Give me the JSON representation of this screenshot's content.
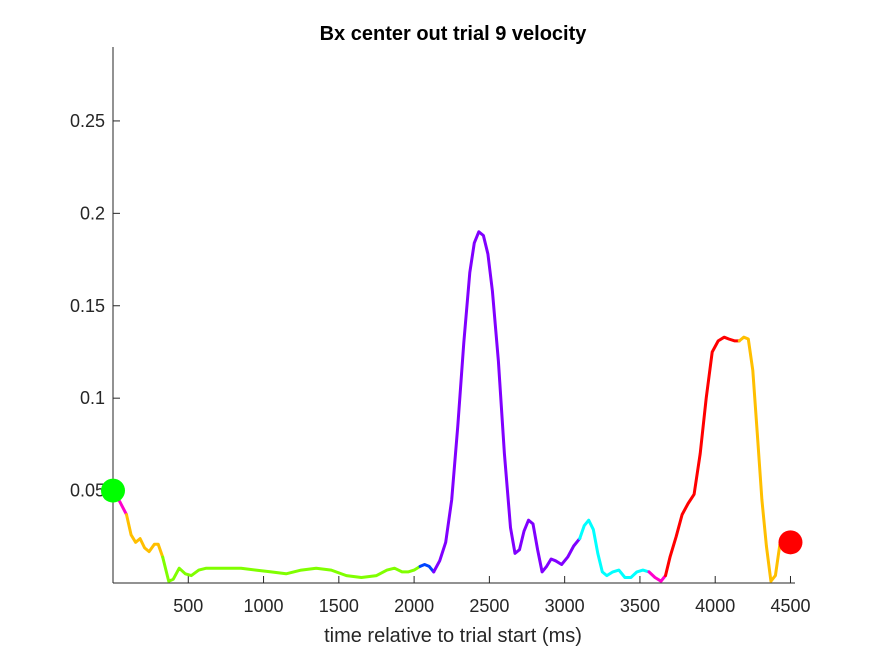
{
  "chart_data": {
    "type": "line",
    "title": "Bx  center out trial 9 velocity",
    "xlabel": "time relative to trial start (ms)",
    "ylabel": "",
    "xlim": [
      0,
      4530
    ],
    "ylim": [
      0,
      0.29
    ],
    "xticks": [
      500,
      1000,
      1500,
      2000,
      2500,
      3000,
      3500,
      4000,
      4500
    ],
    "xtick_labels": [
      "500",
      "1000",
      "1500",
      "2000",
      "2500",
      "3000",
      "3500",
      "4000",
      "4500"
    ],
    "yticks": [
      0.05,
      0.1,
      0.15,
      0.2,
      0.25
    ],
    "ytick_labels": [
      "0.05",
      "0.1",
      "0.15",
      "0.2",
      "0.25"
    ],
    "grid": false,
    "line_width": 3,
    "series": [
      {
        "color": "#ff00cc",
        "x": [
          0,
          45,
          90
        ],
        "y": [
          0.05,
          0.044,
          0.037
        ]
      },
      {
        "color": "#ffbf00",
        "x": [
          90,
          120,
          150,
          180,
          210,
          240,
          275,
          300,
          330
        ],
        "y": [
          0.037,
          0.026,
          0.022,
          0.024,
          0.019,
          0.017,
          0.021,
          0.021,
          0.014
        ]
      },
      {
        "color": "#80ff00",
        "x": [
          330,
          370,
          400,
          440,
          480,
          520,
          570,
          620,
          680,
          750,
          850,
          950,
          1050,
          1150,
          1250,
          1350,
          1450,
          1550,
          1650,
          1750,
          1820,
          1870,
          1920,
          1960,
          2000,
          2040
        ],
        "y": [
          0.014,
          0.001,
          0.002,
          0.008,
          0.005,
          0.004,
          0.007,
          0.008,
          0.008,
          0.008,
          0.008,
          0.007,
          0.006,
          0.005,
          0.007,
          0.008,
          0.007,
          0.004,
          0.003,
          0.004,
          0.007,
          0.008,
          0.006,
          0.006,
          0.007,
          0.009
        ]
      },
      {
        "color": "#0044ff",
        "x": [
          2040,
          2070,
          2100,
          2130
        ],
        "y": [
          0.009,
          0.01,
          0.009,
          0.006
        ]
      },
      {
        "color": "#8000ff",
        "x": [
          2130,
          2170,
          2210,
          2250,
          2290,
          2330,
          2370,
          2400,
          2430,
          2460,
          2490,
          2520,
          2560,
          2600,
          2640,
          2670,
          2700,
          2730,
          2760,
          2790,
          2820,
          2850,
          2880,
          2910,
          2940,
          2980,
          3020,
          3060,
          3100
        ],
        "y": [
          0.006,
          0.012,
          0.022,
          0.045,
          0.085,
          0.13,
          0.168,
          0.184,
          0.19,
          0.188,
          0.178,
          0.158,
          0.12,
          0.07,
          0.03,
          0.016,
          0.018,
          0.028,
          0.034,
          0.032,
          0.018,
          0.006,
          0.009,
          0.013,
          0.012,
          0.01,
          0.014,
          0.02,
          0.024
        ]
      },
      {
        "color": "#00ffff",
        "x": [
          3100,
          3130,
          3160,
          3190,
          3220,
          3250,
          3280,
          3320,
          3360,
          3400,
          3440,
          3480,
          3520,
          3560
        ],
        "y": [
          0.024,
          0.031,
          0.034,
          0.029,
          0.016,
          0.006,
          0.004,
          0.006,
          0.007,
          0.003,
          0.003,
          0.006,
          0.007,
          0.006
        ]
      },
      {
        "color": "#ff00cc",
        "x": [
          3560,
          3600,
          3640,
          3670
        ],
        "y": [
          0.006,
          0.003,
          0.001,
          0.004
        ]
      },
      {
        "color": "#ff0000",
        "x": [
          3670,
          3700,
          3740,
          3780,
          3820,
          3860,
          3900,
          3940,
          3980,
          4020,
          4060,
          4090,
          4130,
          4160
        ],
        "y": [
          0.004,
          0.014,
          0.025,
          0.037,
          0.043,
          0.048,
          0.07,
          0.1,
          0.125,
          0.131,
          0.133,
          0.132,
          0.131,
          0.131
        ]
      },
      {
        "color": "#ffbf00",
        "x": [
          4160,
          4190,
          4220,
          4250,
          4280,
          4310,
          4340,
          4370,
          4400,
          4430
        ],
        "y": [
          0.131,
          0.133,
          0.132,
          0.115,
          0.08,
          0.045,
          0.02,
          0.001,
          0.004,
          0.021
        ]
      }
    ],
    "markers": [
      {
        "x": 0,
        "y": 0.05,
        "color": "#00ff00"
      },
      {
        "x": 4500,
        "y": 0.022,
        "color": "#ff0000"
      }
    ]
  }
}
